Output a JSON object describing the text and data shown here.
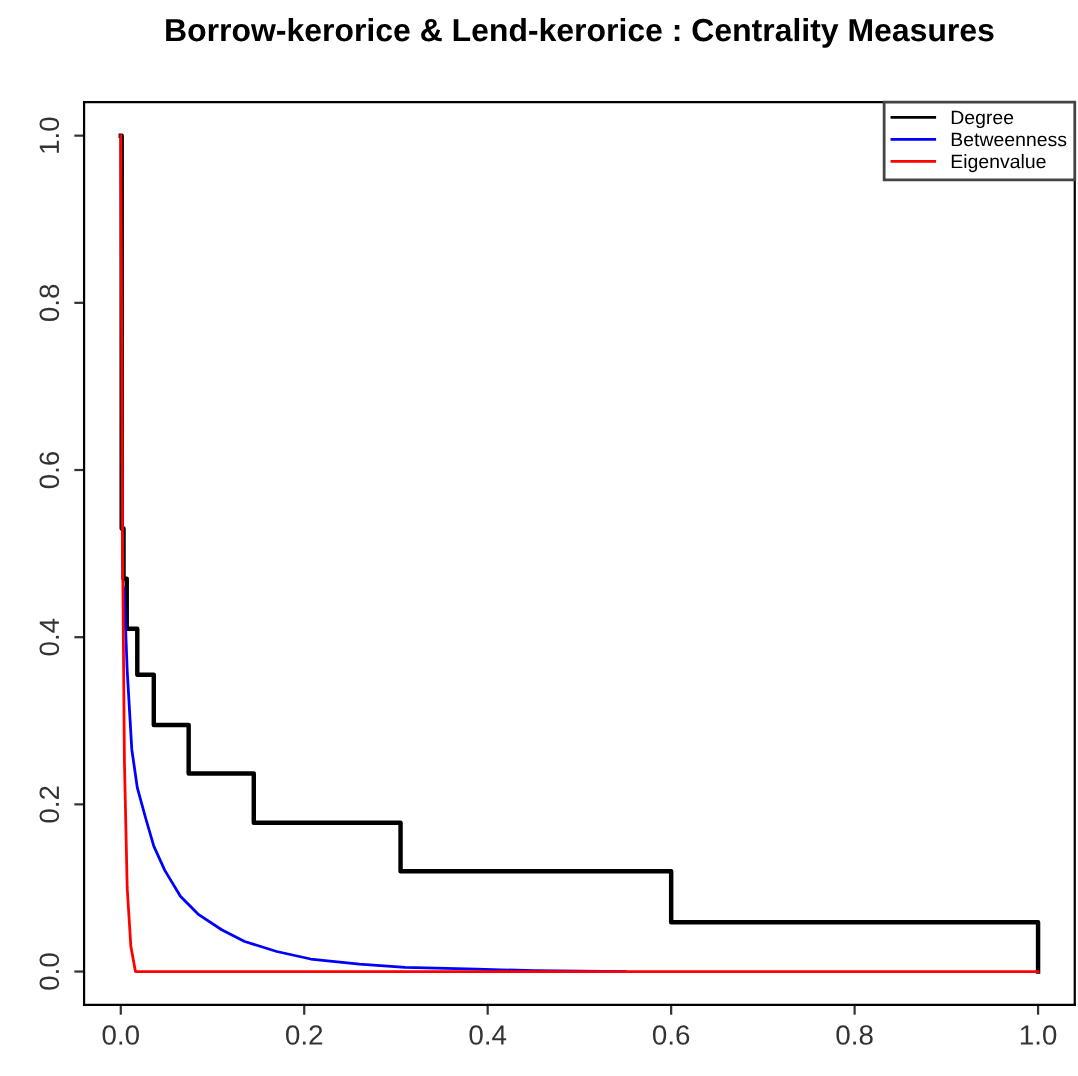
{
  "chart_data": {
    "type": "line",
    "title": "Borrow-kerorice & Lend-kerorice : Centrality Measures",
    "series": [
      {
        "name": "Degree",
        "type": "step",
        "color": "#000000",
        "x": [
          0,
          0.001,
          0.003,
          0.0065,
          0.018,
          0.036,
          0.074,
          0.145,
          0.305,
          0.6,
          1.0,
          1.0
        ],
        "values": [
          1.0,
          0.53,
          0.47,
          0.41,
          0.355,
          0.295,
          0.237,
          0.178,
          0.12,
          0.059,
          0.059,
          0
        ]
      },
      {
        "name": "Betweenness",
        "color": "#0000ff",
        "x": [
          0.0036,
          0.007,
          0.012,
          0.018,
          0.027,
          0.036,
          0.048,
          0.065,
          0.085,
          0.11,
          0.135,
          0.17,
          0.207,
          0.26,
          0.31,
          0.388,
          0.45,
          0.55
        ],
        "values": [
          0.459,
          0.36,
          0.266,
          0.22,
          0.184,
          0.15,
          0.121,
          0.09,
          0.068,
          0.05,
          0.036,
          0.024,
          0.015,
          0.009,
          0.005,
          0.003,
          0.001,
          0
        ]
      },
      {
        "name": "Eigenvalue",
        "color": "#ff0000",
        "x": [
          0,
          0.001,
          0.002,
          0.004,
          0.007,
          0.011,
          0.016,
          0.3,
          0.6,
          1.0
        ],
        "values": [
          1.0,
          0.75,
          0.5,
          0.25,
          0.1,
          0.03,
          0,
          0,
          0,
          0
        ]
      }
    ],
    "xlim": [
      -0.04,
      1.04
    ],
    "ylim": [
      -0.04,
      1.04
    ],
    "xticks": [
      {
        "value": 0,
        "label": "0.0"
      },
      0.2,
      0.4,
      0.6,
      0.8,
      {
        "value": 1,
        "label": "1.0"
      }
    ],
    "yticks": [
      {
        "value": 0,
        "label": "0.0"
      },
      0.2,
      0.4,
      0.6,
      0.8,
      {
        "value": 1,
        "label": "1.0"
      }
    ],
    "grid": false,
    "legend": "top right"
  }
}
